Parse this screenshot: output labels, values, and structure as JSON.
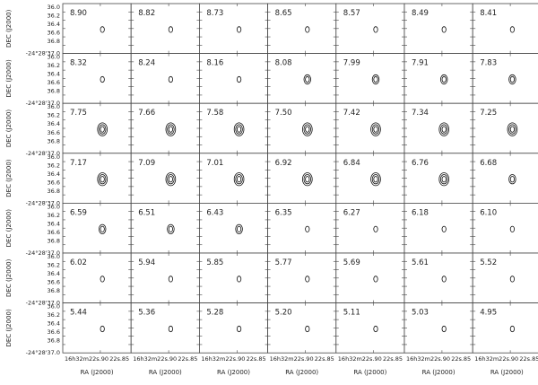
{
  "figure": {
    "velocities": [
      [
        "8.90",
        "8.82",
        "8.73",
        "8.65",
        "8.57",
        "8.49",
        "8.41"
      ],
      [
        "8.32",
        "8.24",
        "8.16",
        "8.08",
        "7.99",
        "7.91",
        "7.83"
      ],
      [
        "7.75",
        "7.66",
        "7.58",
        "7.50",
        "7.42",
        "7.34",
        "7.25"
      ],
      [
        "7.17",
        "7.09",
        "7.01",
        "6.92",
        "6.84",
        "6.76",
        "6.68"
      ],
      [
        "6.59",
        "6.51",
        "6.43",
        "6.35",
        "6.27",
        "6.18",
        "6.10"
      ],
      [
        "6.02",
        "5.94",
        "5.85",
        "5.77",
        "5.69",
        "5.61",
        "5.52"
      ],
      [
        "5.44",
        "5.36",
        "5.28",
        "5.20",
        "5.11",
        "5.03",
        "4.95"
      ]
    ],
    "y_axis_label": "DEC (J2000)",
    "y_ticks": [
      "36.0",
      "36.2",
      "36.4",
      "36.6",
      "36.8",
      "37.0"
    ],
    "y_origin_label": "-24°28'37.0",
    "x_axis_label": "RA (J2000)",
    "x_tick_left": "16h32m22s.90",
    "x_tick_right": "22s.85",
    "contour_levels": [
      [
        1,
        1,
        1,
        1,
        1,
        1,
        1
      ],
      [
        1,
        1,
        1,
        2,
        2,
        2,
        2
      ],
      [
        3,
        3,
        3,
        3,
        3,
        3,
        3
      ],
      [
        3,
        3,
        3,
        3,
        3,
        3,
        2
      ],
      [
        2,
        2,
        2,
        1,
        1,
        1,
        1
      ],
      [
        1,
        1,
        1,
        1,
        1,
        1,
        1
      ],
      [
        1,
        1,
        1,
        1,
        1,
        1,
        1
      ]
    ]
  }
}
